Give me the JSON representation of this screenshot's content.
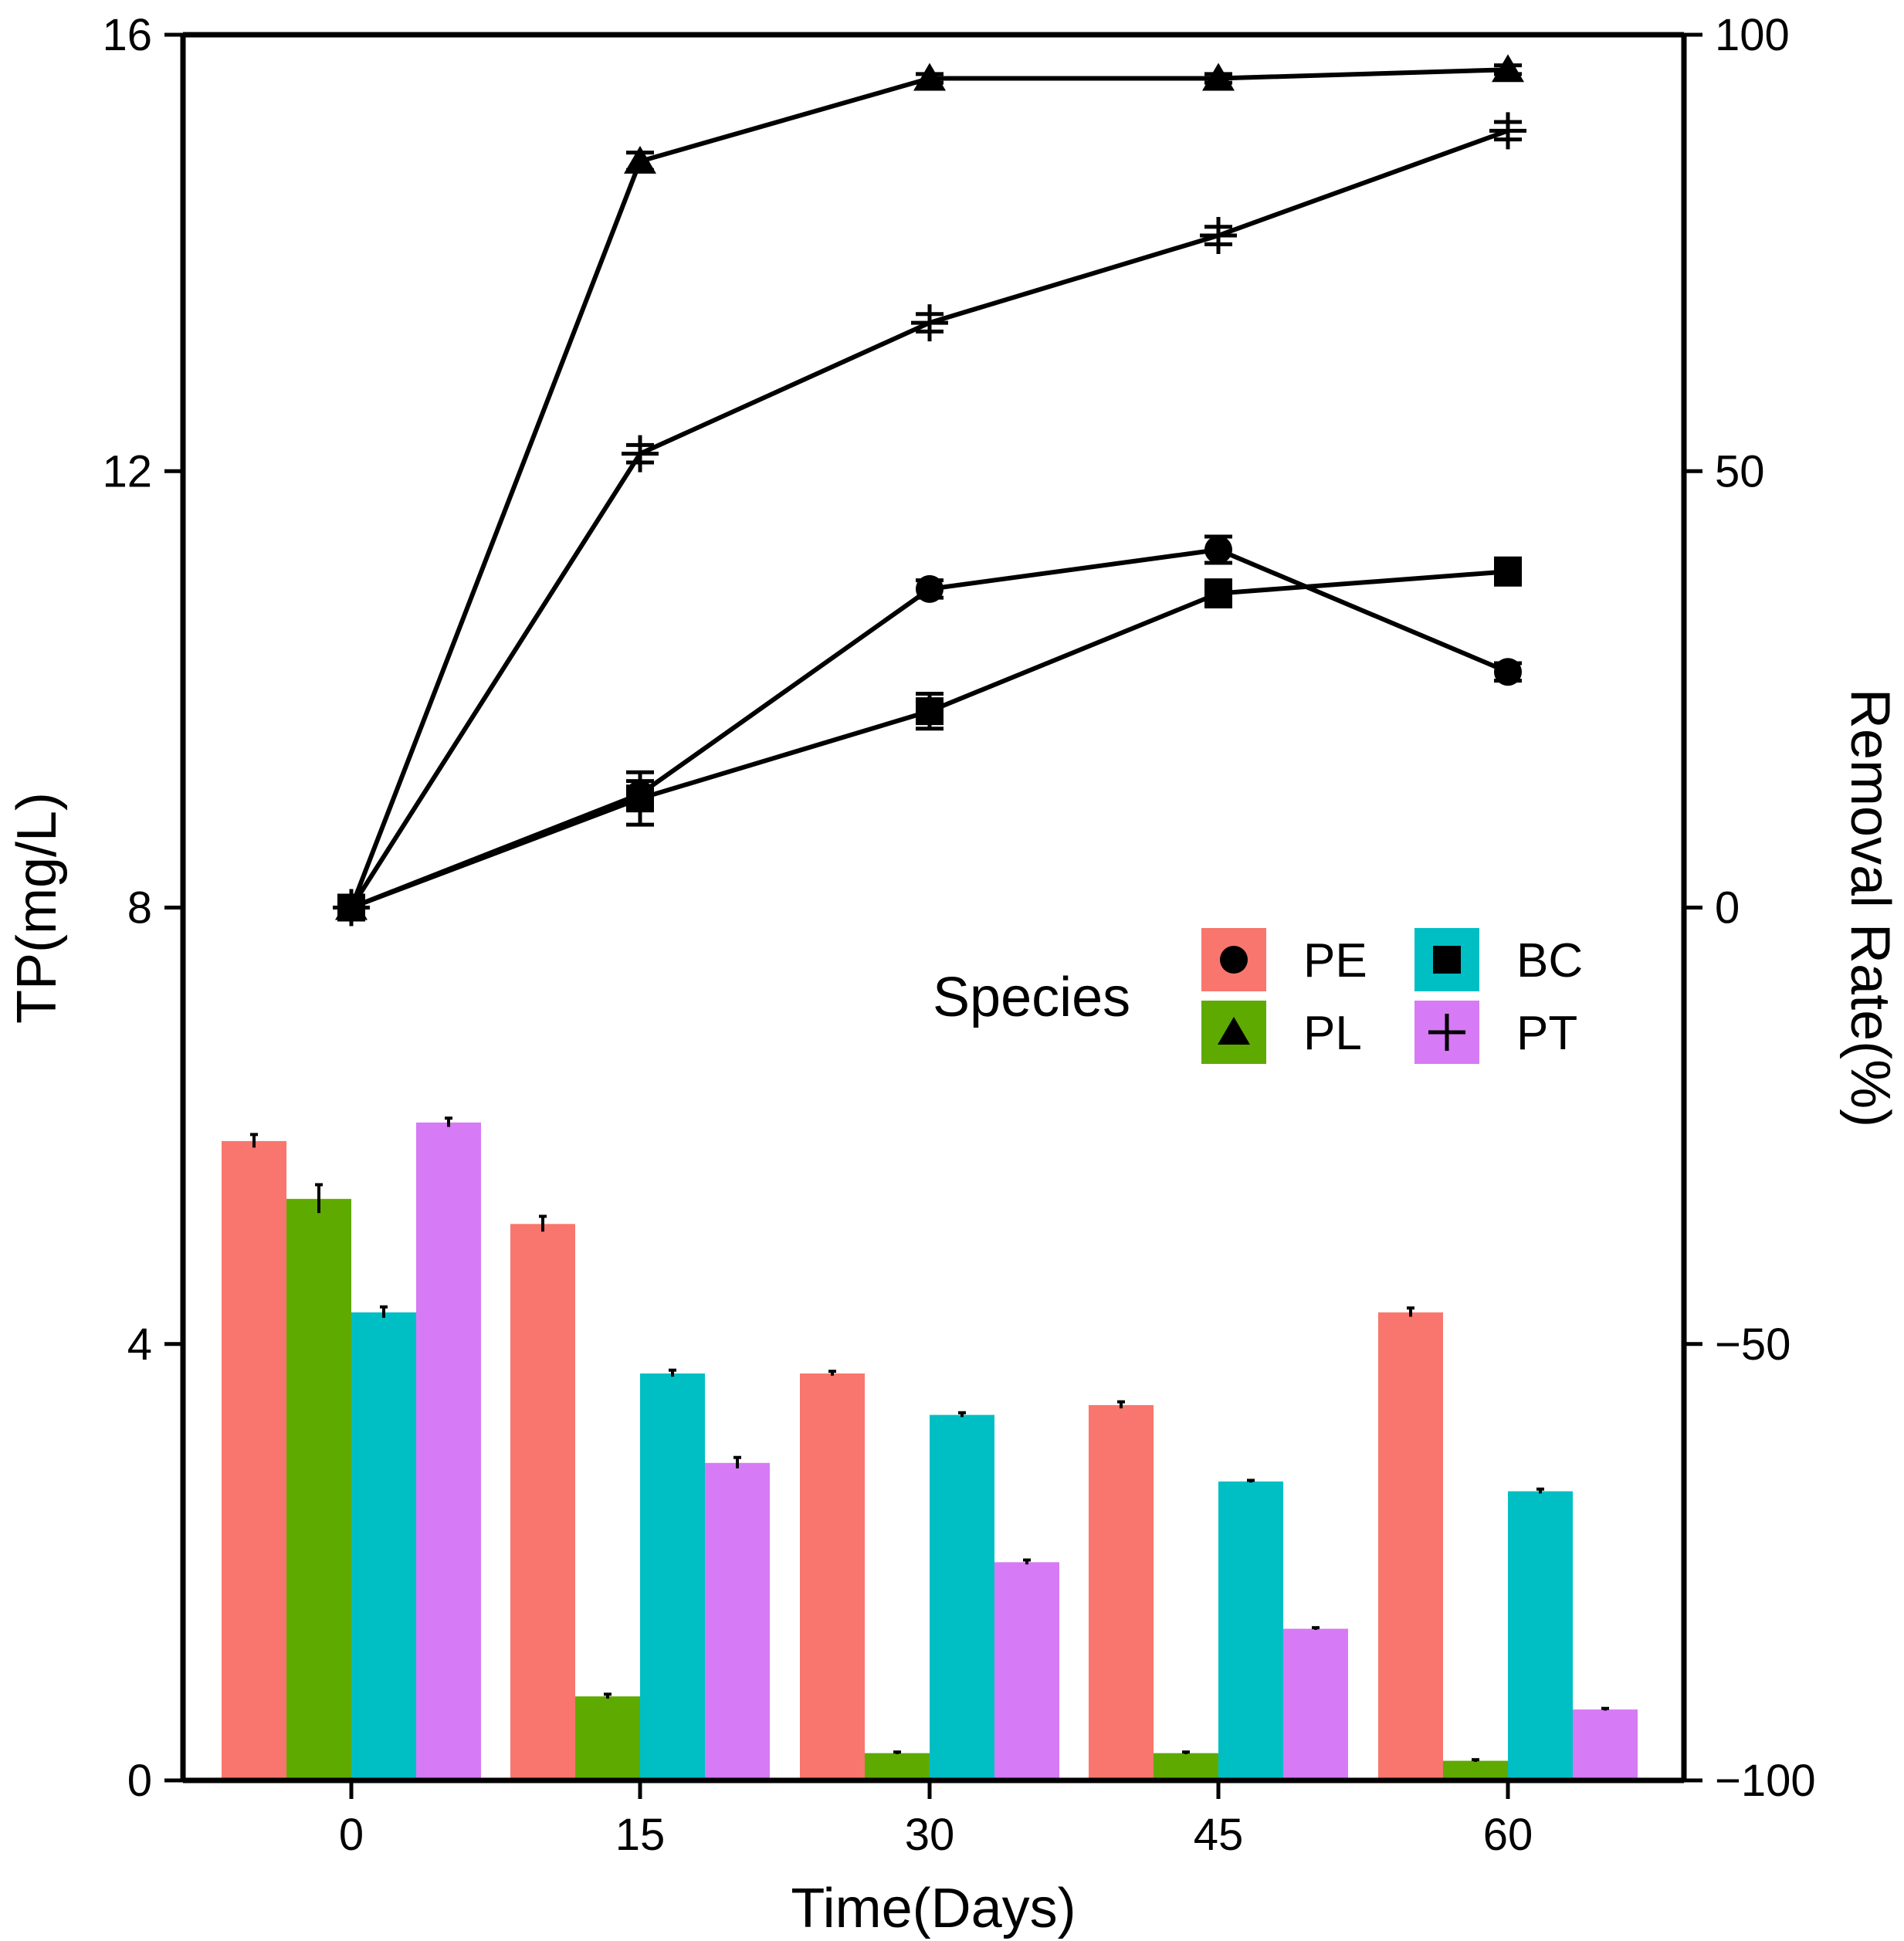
{
  "chart_data": {
    "type": "bar",
    "title": "",
    "xlabel": "Time(Days)",
    "ylabel": "TP(mg/L)",
    "y2label": "Removal Rate(%)",
    "categories": [
      "0",
      "15",
      "30",
      "45",
      "60"
    ],
    "ylim": [
      0,
      16
    ],
    "y_ticks": [
      "0",
      "4",
      "8",
      "12",
      "16"
    ],
    "y2lim": [
      -100,
      100
    ],
    "y2_ticks": [
      "−100",
      "−50",
      "0",
      "50",
      "100"
    ],
    "grid": false,
    "legend": {
      "title": "Species",
      "placement": "center-right",
      "columns": [
        [
          "PE",
          "PL"
        ],
        [
          "BC",
          "PT"
        ]
      ]
    },
    "bar_series": [
      {
        "name": "PE",
        "color": "#F8766D",
        "values": [
          5.86,
          5.1,
          3.73,
          3.44,
          4.29
        ],
        "errors": [
          0.06,
          0.07,
          0.02,
          0.03,
          0.04
        ]
      },
      {
        "name": "PL",
        "color": "#5FAA00",
        "values": [
          5.33,
          0.77,
          0.25,
          0.25,
          0.18
        ],
        "errors": [
          0.13,
          0.02,
          0.01,
          0.01,
          0.01
        ]
      },
      {
        "name": "BC",
        "color": "#00BFC4",
        "values": [
          4.29,
          3.73,
          3.35,
          2.74,
          2.65
        ],
        "errors": [
          0.05,
          0.03,
          0.02,
          0.01,
          0.02
        ]
      },
      {
        "name": "PT",
        "color": "#D67AF5",
        "values": [
          6.03,
          2.91,
          2.0,
          1.39,
          0.65
        ],
        "errors": [
          0.04,
          0.05,
          0.02,
          0.01,
          0.01
        ]
      }
    ],
    "line_series": [
      {
        "name": "PE",
        "marker": "circle",
        "values": [
          0,
          13,
          36.5,
          41,
          27
        ],
        "errors": [
          0.5,
          1.5,
          1.0,
          1.5,
          1.0
        ]
      },
      {
        "name": "PL",
        "marker": "triangle",
        "values": [
          0,
          85.5,
          95,
          95,
          96
        ],
        "errors": [
          0.5,
          1.0,
          0.5,
          0.5,
          0.5
        ]
      },
      {
        "name": "BC",
        "marker": "square",
        "values": [
          0,
          12.5,
          22.5,
          36,
          38.5
        ],
        "errors": [
          0.5,
          3.0,
          2.0,
          1.5,
          1.5
        ]
      },
      {
        "name": "PT",
        "marker": "plus",
        "values": [
          0,
          52,
          67,
          77,
          89
        ],
        "errors": [
          0.5,
          1.0,
          1.0,
          1.0,
          1.0
        ]
      }
    ]
  }
}
